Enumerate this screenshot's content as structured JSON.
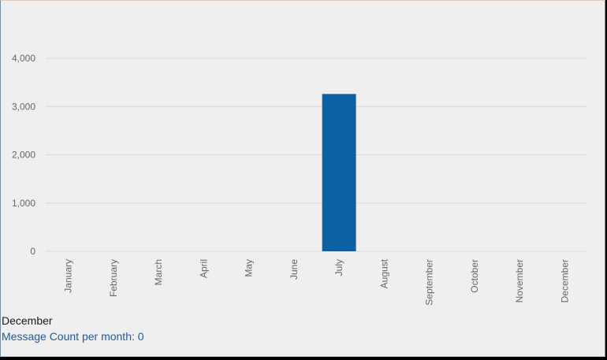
{
  "chart_data": {
    "type": "bar",
    "title": "",
    "xlabel": "",
    "ylabel": "",
    "categories": [
      "January",
      "February",
      "March",
      "April",
      "May",
      "June",
      "July",
      "August",
      "September",
      "October",
      "November",
      "December"
    ],
    "series": [
      {
        "values": [
          0,
          0,
          0,
          0,
          0,
          0,
          3260,
          0,
          0,
          0,
          0,
          0
        ],
        "color": "#0b61a4"
      }
    ],
    "ylim": [
      0,
      4000
    ],
    "yticks": [
      0,
      1000,
      2000,
      3000,
      4000
    ],
    "ytick_labels": [
      "0",
      "1,000",
      "2,000",
      "3,000",
      "4,000"
    ],
    "grid": true,
    "legend": "none"
  },
  "tooltip": {
    "category": "December",
    "series_label": "Message Count per month",
    "value_text": "0"
  },
  "colors": {
    "bar": "#0b61a4",
    "gridline": "#d8d8d8",
    "axis_text": "#666666",
    "tooltip_series": "#1f5a9c"
  }
}
